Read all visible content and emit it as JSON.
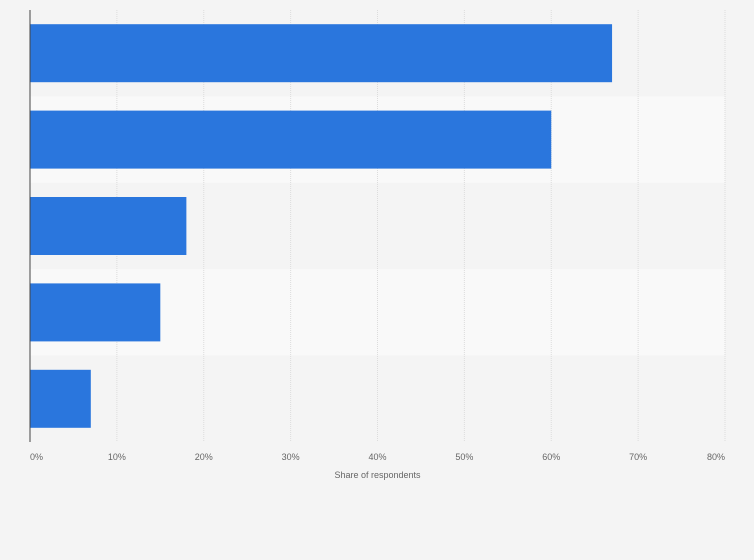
{
  "chart_data": {
    "type": "bar",
    "orientation": "horizontal",
    "categories": [
      "",
      "",
      "",
      "",
      ""
    ],
    "values": [
      67,
      60,
      18,
      15,
      7
    ],
    "xlabel": "Share of respondents",
    "ylabel": "",
    "xlim": [
      0,
      80
    ],
    "x_ticks": [
      "0%",
      "10%",
      "20%",
      "30%",
      "40%",
      "50%",
      "60%",
      "70%",
      "80%"
    ],
    "grid": true,
    "legend": "none"
  },
  "colors": {
    "bar": "#2a76dd",
    "background": "#f4f4f4",
    "band_light": "#f9f9f9",
    "band_dark": "#f4f4f4",
    "gridline": "#dcdcdc",
    "axis": "#444444",
    "text": "#666666"
  }
}
